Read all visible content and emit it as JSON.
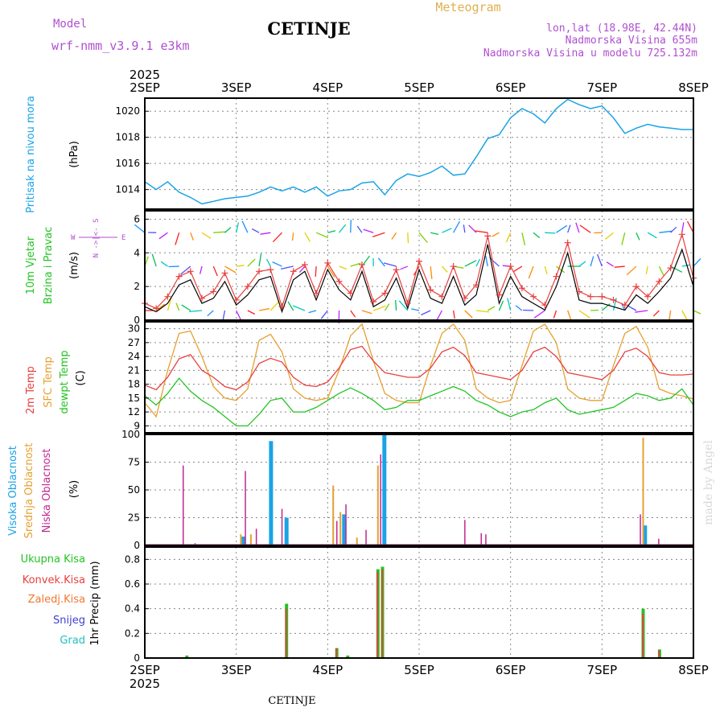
{
  "header": {
    "model_label": "Model",
    "model_name": "wrf-nmm_v3.9.1 e3km",
    "station": "CETINJE",
    "product": "Meteogram",
    "coords": "lon,lat (18.98E, 42.44N)",
    "altitude": "Nadmorska Visina 655m",
    "model_altitude": "Nadmorska Visina u modelu 725.132m",
    "year_top": "2025",
    "year_bottom": "2025",
    "footer_station": "CETINJE",
    "watermark": "made by Angel"
  },
  "colors": {
    "pressure": "#1aa3e6",
    "temp2m": "#e8403f",
    "sfc_temp": "#e6a030",
    "dewpt": "#22c422",
    "wind_speed": "#000000",
    "gust": "#e8403f",
    "high_cloud": "#1aa3e6",
    "mid_cloud": "#e6a030",
    "low_cloud": "#c02890",
    "total_precip": "#22c422",
    "conv_precip": "#e8403f",
    "strat_precip": "#f07830",
    "snow": "#4040d0",
    "hail": "#20c0c0",
    "purple_text": "#b050d0",
    "orange_text": "#e0b050"
  },
  "chart_data": [
    {
      "type": "line",
      "title": "Pritisak na nivou mora",
      "ylabel": "(hPa)",
      "ylim": [
        1012.5,
        1021
      ],
      "yticks": [
        "1014",
        "1016",
        "1018",
        "1020"
      ],
      "x_unit": "days since 2SEP 00",
      "x": [
        0,
        0.125,
        0.25,
        0.375,
        0.5,
        0.625,
        0.75,
        0.875,
        1.0,
        1.125,
        1.25,
        1.375,
        1.5,
        1.625,
        1.75,
        1.875,
        2.0,
        2.125,
        2.25,
        2.375,
        2.5,
        2.625,
        2.75,
        2.875,
        3.0,
        3.125,
        3.25,
        3.375,
        3.5,
        3.625,
        3.75,
        3.875,
        4.0,
        4.125,
        4.25,
        4.375,
        4.5,
        4.625,
        4.75,
        4.875,
        5.0,
        5.125,
        5.25,
        5.375,
        5.5,
        5.625,
        5.75,
        5.875,
        6.0
      ],
      "series": [
        {
          "name": "Pritisak na nivou mora",
          "values": [
            1014.6,
            1014.0,
            1014.6,
            1013.8,
            1013.4,
            1012.9,
            1013.1,
            1013.3,
            1013.4,
            1013.5,
            1013.8,
            1014.2,
            1013.9,
            1014.2,
            1013.8,
            1014.2,
            1013.5,
            1013.9,
            1014.0,
            1014.5,
            1014.6,
            1013.6,
            1014.7,
            1015.2,
            1015.0,
            1015.3,
            1015.8,
            1015.1,
            1015.2,
            1016.5,
            1017.9,
            1018.2,
            1019.5,
            1020.2,
            1019.8,
            1019.1,
            1020.2,
            1020.9,
            1020.5,
            1020.2,
            1020.4,
            1019.5,
            1018.3,
            1018.7,
            1019.0,
            1018.8,
            1018.7,
            1018.6,
            1018.6
          ]
        }
      ]
    },
    {
      "type": "line",
      "title": "10m Vjetar Brzina i Pravac",
      "ylabel": "(m/s)",
      "ylim": [
        0,
        6.5
      ],
      "yticks": [
        "0",
        "2",
        "4",
        "6"
      ],
      "compass": {
        "n": "N",
        "s": "S",
        "w": "W",
        "e": "E"
      },
      "x_unit": "days since 2SEP 00",
      "x": [
        0,
        0.125,
        0.25,
        0.375,
        0.5,
        0.625,
        0.75,
        0.875,
        1.0,
        1.125,
        1.25,
        1.375,
        1.5,
        1.625,
        1.75,
        1.875,
        2.0,
        2.125,
        2.25,
        2.375,
        2.5,
        2.625,
        2.75,
        2.875,
        3.0,
        3.125,
        3.25,
        3.375,
        3.5,
        3.625,
        3.75,
        3.875,
        4.0,
        4.125,
        4.25,
        4.375,
        4.5,
        4.625,
        4.75,
        4.875,
        5.0,
        5.125,
        5.25,
        5.375,
        5.5,
        5.625,
        5.75,
        5.875,
        6.0
      ],
      "series": [
        {
          "name": "speed",
          "values": [
            0.8,
            0.5,
            1.0,
            2.1,
            2.4,
            1.0,
            1.3,
            2.3,
            0.9,
            1.5,
            2.4,
            2.6,
            0.5,
            2.4,
            2.9,
            1.2,
            3.0,
            1.8,
            1.2,
            2.9,
            0.8,
            1.2,
            2.5,
            0.7,
            3.0,
            1.3,
            1.0,
            2.6,
            0.9,
            1.5,
            4.5,
            1.0,
            2.6,
            1.4,
            1.0,
            0.6,
            2.0,
            4.0,
            1.2,
            1.0,
            1.0,
            0.8,
            0.6,
            1.5,
            1.0,
            1.7,
            2.5,
            4.2,
            2.0
          ]
        },
        {
          "name": "gust",
          "values": [
            1.0,
            0.7,
            1.4,
            2.6,
            2.9,
            1.3,
            1.7,
            2.8,
            1.2,
            2.0,
            2.9,
            3.0,
            0.8,
            2.9,
            3.3,
            1.6,
            3.4,
            2.3,
            1.6,
            3.3,
            1.1,
            1.6,
            3.0,
            1.0,
            3.5,
            1.8,
            1.4,
            3.2,
            1.3,
            2.1,
            5.0,
            1.5,
            3.2,
            1.9,
            1.4,
            0.9,
            2.6,
            4.6,
            1.7,
            1.4,
            1.4,
            1.2,
            0.9,
            2.0,
            1.4,
            2.3,
            3.1,
            5.1,
            2.5
          ]
        }
      ]
    },
    {
      "type": "line",
      "title": "2m Temp / SFC Temp / dewpt Temp",
      "ylabel": "(C)",
      "ylim": [
        7.5,
        31.5
      ],
      "yticks": [
        "9",
        "12",
        "15",
        "18",
        "21",
        "24",
        "27",
        "30"
      ],
      "x_unit": "days since 2SEP 00",
      "x": [
        0,
        0.125,
        0.25,
        0.375,
        0.5,
        0.625,
        0.75,
        0.875,
        1.0,
        1.125,
        1.25,
        1.375,
        1.5,
        1.625,
        1.75,
        1.875,
        2.0,
        2.125,
        2.25,
        2.375,
        2.5,
        2.625,
        2.75,
        2.875,
        3.0,
        3.125,
        3.25,
        3.375,
        3.5,
        3.625,
        3.75,
        3.875,
        4.0,
        4.125,
        4.25,
        4.375,
        4.5,
        4.625,
        4.75,
        4.875,
        5.0,
        5.125,
        5.25,
        5.375,
        5.5,
        5.625,
        5.75,
        5.875,
        6.0
      ],
      "series": [
        {
          "name": "2m Temp",
          "values": [
            17.8,
            16.8,
            19.5,
            23.5,
            24.4,
            21.0,
            19.5,
            17.5,
            16.8,
            18.5,
            22.5,
            23.6,
            22.8,
            19.5,
            17.8,
            17.5,
            18.5,
            21.5,
            25.5,
            26.2,
            23.0,
            20.5,
            20.0,
            19.5,
            19.5,
            21.5,
            25.0,
            26.0,
            24.2,
            20.5,
            20.0,
            19.5,
            19.0,
            21.0,
            25.0,
            26.0,
            24.0,
            20.5,
            20.0,
            19.5,
            19.0,
            21.0,
            25.0,
            25.8,
            24.0,
            20.5,
            20.0,
            20.0,
            20.2
          ]
        },
        {
          "name": "SFC Temp",
          "values": [
            14.0,
            11.0,
            21.0,
            29.0,
            29.5,
            24.0,
            17.5,
            15.0,
            14.5,
            17.0,
            27.5,
            28.8,
            25.0,
            17.0,
            15.0,
            14.5,
            15.0,
            21.0,
            28.5,
            31.0,
            23.0,
            16.0,
            14.5,
            14.0,
            14.0,
            22.0,
            29.0,
            31.0,
            27.5,
            17.0,
            15.0,
            14.0,
            14.5,
            22.0,
            29.5,
            31.0,
            27.0,
            17.0,
            15.0,
            14.5,
            14.5,
            22.0,
            29.0,
            30.5,
            26.0,
            17.0,
            16.0,
            15.5,
            14.8
          ]
        },
        {
          "name": "dewpt Temp",
          "values": [
            15.5,
            13.5,
            16.0,
            19.3,
            16.5,
            14.5,
            13.0,
            11.0,
            9.0,
            9.0,
            11.5,
            14.5,
            15.0,
            12.0,
            12.0,
            13.0,
            14.5,
            16.0,
            17.2,
            16.0,
            14.5,
            12.5,
            13.0,
            14.5,
            14.5,
            15.5,
            16.5,
            17.5,
            16.5,
            14.5,
            13.5,
            12.0,
            11.0,
            12.0,
            12.5,
            14.0,
            15.0,
            12.5,
            11.5,
            12.0,
            12.5,
            13.0,
            14.5,
            16.0,
            15.5,
            14.5,
            15.0,
            17.0,
            13.5
          ]
        }
      ]
    },
    {
      "type": "bar",
      "title": "Visoka Oblacnost / Srednja Oblacnost / Niska Oblacnost",
      "ylabel": "(%)",
      "ylim": [
        0,
        100
      ],
      "yticks": [
        "0",
        "25",
        "50",
        "75",
        "100"
      ],
      "x_unit": "days since 2SEP 00",
      "series": [
        {
          "name": "Visoka Oblacnost",
          "x": [
            1.08,
            1.38,
            1.55,
            2.18,
            2.62,
            5.47
          ],
          "values": [
            8,
            94,
            25,
            28,
            100,
            18
          ]
        },
        {
          "name": "Srednja Oblacnost",
          "x": [
            1.05,
            1.16,
            2.06,
            2.14,
            2.32,
            2.55,
            5.45
          ],
          "values": [
            10,
            10,
            54,
            30,
            7,
            72,
            97
          ]
        },
        {
          "name": "Niska Oblacnost",
          "x": [
            0.42,
            0.55,
            1.1,
            1.22,
            1.5,
            2.1,
            2.2,
            2.42,
            2.58,
            3.5,
            3.68,
            3.73,
            5.42,
            5.62
          ],
          "values": [
            72,
            2,
            67,
            15,
            33,
            22,
            37,
            14,
            82,
            23,
            11,
            10,
            28,
            6
          ]
        }
      ]
    },
    {
      "type": "bar",
      "title": "1hr Precip",
      "ylabel": "1hr Precip (mm)",
      "legend": [
        "Ukupna Kisa",
        "Konvek.Kisa",
        "Zaledj.Kisa",
        "Snijeg",
        "Grad"
      ],
      "ylim": [
        0,
        0.9
      ],
      "yticks": [
        "0",
        "0.2",
        "0.4",
        "0.6",
        "0.8"
      ],
      "x_unit": "days since 2SEP 00",
      "series": [
        {
          "name": "Ukupna Kisa",
          "x": [
            0.46,
            1.55,
            2.1,
            2.22,
            2.55,
            2.6,
            5.45,
            5.63
          ],
          "values": [
            0.02,
            0.44,
            0.08,
            0.02,
            0.72,
            0.74,
            0.4,
            0.07
          ]
        },
        {
          "name": "Konvek.Kisa",
          "x": [
            1.545,
            2.095,
            2.545,
            2.595,
            5.445,
            5.625
          ],
          "values": [
            0.4,
            0.08,
            0.7,
            0.72,
            0.36,
            0.06
          ]
        }
      ]
    }
  ],
  "time_axis": {
    "labels": [
      "2SEP",
      "3SEP",
      "4SEP",
      "5SEP",
      "6SEP",
      "7SEP",
      "8SEP"
    ]
  },
  "panel_labels": {
    "pressure": {
      "line1": "Pritisak na nivou mora",
      "unit": "(hPa)"
    },
    "wind": {
      "line1": "10m Vjetar",
      "line2": "Brzina i Pravac",
      "unit": "(m/s)"
    },
    "temp": {
      "t2m": "2m Temp",
      "sfc": "SFC Temp",
      "dew": "dewpt Temp",
      "unit": "(C)"
    },
    "cloud": {
      "high": "Visoka Oblacnost",
      "mid": "Srednja Oblacnost",
      "low": "Niska Oblacnost",
      "unit": "(%)"
    },
    "precip": {
      "total": "Ukupna Kisa",
      "conv": "Konvek.Kisa",
      "frz": "Zaledj.Kisa",
      "snow": "Snijeg",
      "hail": "Grad",
      "unit": "1hr Precip (mm)"
    }
  }
}
